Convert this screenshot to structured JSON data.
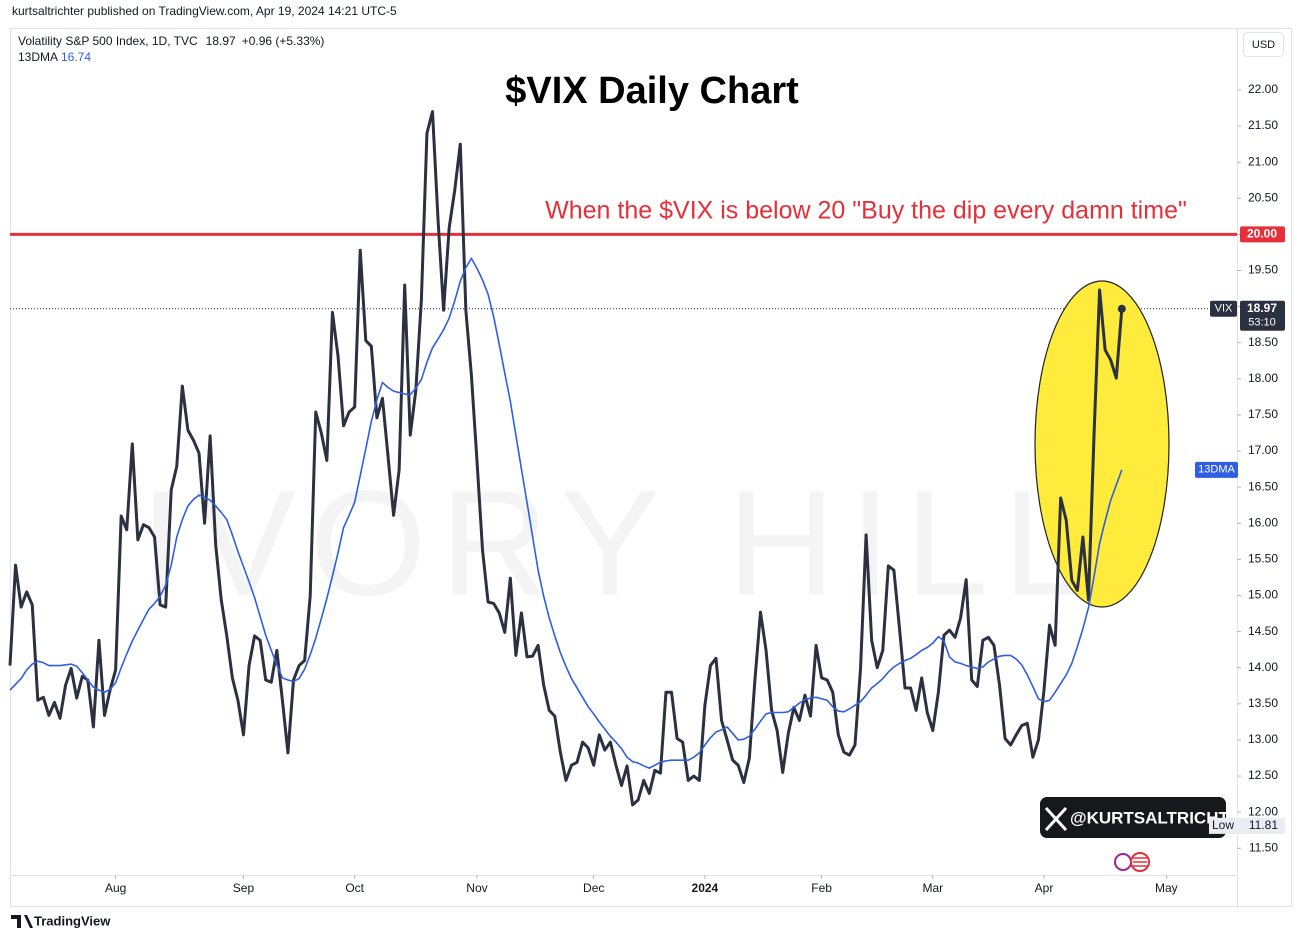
{
  "chart_data": {
    "type": "line",
    "header": "kurtsaltrichter published on TradingView.com, Apr 19, 2024 14:21 UTC-5",
    "title": "$VIX Daily Chart",
    "change": "+0.96 (+5.33%)",
    "annotation": "When the $VIX is below 20 \"Buy the dip every damn time\"",
    "watermark": "IVORY HILL",
    "handle": "@KURTSALTRICHTER",
    "currency": "USD",
    "price_tag": "VIX",
    "countdown": "53:10",
    "footer": "TradingView",
    "low": {
      "label": "Low",
      "value": 11.81
    },
    "hline": {
      "value": 20,
      "label": "20.00",
      "color": "#e5303a"
    },
    "grid": false,
    "xlim": [
      0,
      220
    ],
    "xticks": [
      {
        "value": 19,
        "label": "Aug"
      },
      {
        "value": 42,
        "label": "Sep"
      },
      {
        "value": 62,
        "label": "Oct"
      },
      {
        "value": 84,
        "label": "Nov"
      },
      {
        "value": 105,
        "label": "Dec"
      },
      {
        "value": 125,
        "label": "2024"
      },
      {
        "value": 146,
        "label": "Feb"
      },
      {
        "value": 166,
        "label": "Mar"
      },
      {
        "value": 186,
        "label": "Apr"
      },
      {
        "value": 208,
        "label": "May"
      }
    ],
    "ylim": [
      11.13,
      22.83
    ],
    "yticks": [
      {
        "value": 11.5,
        "label": "11.50"
      },
      {
        "value": 12,
        "label": "12.00"
      },
      {
        "value": 12.5,
        "label": "12.50"
      },
      {
        "value": 13,
        "label": "13.00"
      },
      {
        "value": 13.5,
        "label": "13.50"
      },
      {
        "value": 14,
        "label": "14.00"
      },
      {
        "value": 14.5,
        "label": "14.50"
      },
      {
        "value": 15,
        "label": "15.00"
      },
      {
        "value": 15.5,
        "label": "15.50"
      },
      {
        "value": 16,
        "label": "16.00"
      },
      {
        "value": 16.5,
        "label": "16.50"
      },
      {
        "value": 17,
        "label": "17.00"
      },
      {
        "value": 17.5,
        "label": "17.50"
      },
      {
        "value": 18,
        "label": "18.00"
      },
      {
        "value": 18.5,
        "label": "18.50"
      },
      {
        "value": 19,
        "label": "19.00"
      },
      {
        "value": 19.5,
        "label": "19.50"
      },
      {
        "value": 20,
        "label": "20.00"
      },
      {
        "value": 20.5,
        "label": "20.50"
      },
      {
        "value": 21,
        "label": "21.00"
      },
      {
        "value": 21.5,
        "label": "21.50"
      },
      {
        "value": 22,
        "label": "22.00"
      }
    ],
    "series": [
      {
        "name": "Volatility S&P 500 Index, 1D, TVC",
        "color": "#2b3140",
        "values": [
          14.03,
          15.42,
          14.84,
          15.05,
          14.87,
          13.55,
          13.59,
          13.34,
          13.52,
          13.3,
          13.76,
          13.99,
          13.58,
          13.88,
          13.83,
          13.18,
          14.38,
          13.34,
          13.69,
          13.97,
          16.1,
          15.91,
          17.1,
          15.77,
          15.98,
          15.94,
          15.81,
          14.87,
          14.84,
          16.46,
          16.79,
          17.9,
          17.29,
          17.15,
          16.97,
          16.0,
          17.21,
          15.7,
          14.94,
          14.44,
          13.86,
          13.55,
          13.07,
          14.03,
          14.44,
          14.38,
          13.83,
          13.8,
          14.24,
          13.55,
          12.82,
          13.83,
          14.03,
          14.1,
          14.99,
          17.54,
          17.25,
          16.87,
          18.92,
          18.32,
          17.35,
          17.54,
          17.61,
          19.78,
          18.53,
          18.45,
          17.46,
          17.73,
          16.93,
          16.11,
          16.74,
          19.3,
          17.22,
          17.84,
          19.09,
          21.4,
          21.7,
          20.2,
          18.95,
          20.09,
          20.61,
          21.25,
          18.95,
          18.05,
          16.87,
          15.63,
          14.91,
          14.89,
          14.76,
          14.49,
          15.24,
          14.17,
          14.76,
          14.15,
          14.16,
          14.31,
          13.76,
          13.41,
          13.33,
          12.83,
          12.44,
          12.65,
          12.69,
          12.97,
          12.89,
          12.65,
          13.07,
          12.86,
          12.97,
          12.65,
          12.37,
          12.64,
          12.1,
          12.17,
          12.44,
          12.26,
          12.58,
          12.54,
          13.66,
          13.66,
          13.02,
          12.97,
          12.44,
          12.5,
          12.44,
          13.48,
          14.03,
          14.13,
          13.27,
          13.0,
          12.72,
          12.65,
          12.41,
          12.75,
          13.83,
          14.77,
          14.24,
          13.41,
          13.13,
          12.55,
          13.09,
          13.45,
          13.27,
          13.62,
          13.33,
          14.31,
          13.86,
          13.83,
          13.66,
          13.07,
          12.83,
          12.79,
          12.93,
          13.99,
          15.84,
          14.38,
          14.0,
          14.24,
          15.41,
          15.35,
          14.55,
          13.72,
          13.72,
          13.41,
          13.86,
          13.38,
          13.13,
          13.66,
          14.45,
          14.52,
          14.42,
          14.69,
          15.22,
          13.83,
          13.74,
          14.38,
          14.42,
          14.31,
          13.76,
          13.02,
          12.93,
          13.07,
          13.2,
          13.23,
          12.76,
          13.0,
          13.69,
          14.59,
          14.31,
          16.35,
          16.04,
          15.21,
          15.07,
          15.81,
          14.94,
          17.22,
          19.23,
          18.4,
          18.26,
          18.01,
          18.97
        ]
      },
      {
        "name": "13DMA",
        "color": "#2f5fe0",
        "values": [
          13.69,
          13.77,
          13.85,
          13.97,
          14.05,
          14.09,
          14.07,
          14.03,
          14.03,
          14.03,
          14.04,
          14.05,
          14.02,
          13.93,
          13.83,
          13.73,
          13.69,
          13.66,
          13.7,
          13.79,
          14.0,
          14.19,
          14.37,
          14.52,
          14.67,
          14.81,
          14.89,
          14.99,
          15.14,
          15.42,
          15.81,
          16.05,
          16.24,
          16.33,
          16.39,
          16.36,
          16.32,
          16.24,
          16.15,
          16.05,
          15.84,
          15.61,
          15.4,
          15.19,
          14.97,
          14.71,
          14.45,
          14.24,
          14.04,
          13.86,
          13.83,
          13.81,
          13.85,
          13.98,
          14.18,
          14.41,
          14.68,
          14.96,
          15.27,
          15.59,
          15.94,
          16.11,
          16.29,
          16.66,
          17.03,
          17.41,
          17.71,
          17.95,
          17.88,
          17.83,
          17.81,
          17.79,
          17.78,
          17.87,
          17.99,
          18.23,
          18.43,
          18.55,
          18.68,
          18.84,
          19.08,
          19.35,
          19.54,
          19.67,
          19.53,
          19.37,
          19.17,
          18.86,
          18.48,
          18.08,
          17.69,
          17.22,
          16.75,
          16.29,
          15.82,
          15.35,
          14.99,
          14.69,
          14.44,
          14.21,
          14.02,
          13.85,
          13.72,
          13.59,
          13.46,
          13.36,
          13.25,
          13.15,
          13.05,
          12.97,
          12.88,
          12.76,
          12.7,
          12.68,
          12.64,
          12.61,
          12.65,
          12.69,
          12.71,
          12.72,
          12.72,
          12.72,
          12.72,
          12.76,
          12.82,
          12.93,
          13.03,
          13.11,
          13.14,
          13.18,
          13.09,
          13.0,
          13.01,
          13.05,
          13.15,
          13.26,
          13.36,
          13.38,
          13.38,
          13.38,
          13.39,
          13.45,
          13.51,
          13.56,
          13.58,
          13.59,
          13.57,
          13.55,
          13.46,
          13.4,
          13.39,
          13.43,
          13.48,
          13.53,
          13.62,
          13.72,
          13.78,
          13.85,
          13.94,
          14.01,
          14.06,
          14.1,
          14.13,
          14.18,
          14.24,
          14.28,
          14.34,
          14.43,
          14.37,
          14.15,
          14.08,
          14.06,
          14.03,
          14.01,
          13.99,
          14.01,
          14.08,
          14.12,
          14.16,
          14.17,
          14.17,
          14.12,
          14.04,
          13.9,
          13.74,
          13.57,
          13.53,
          13.55,
          13.66,
          13.78,
          13.9,
          14.06,
          14.29,
          14.54,
          14.83,
          15.26,
          15.72,
          16.03,
          16.32,
          16.53,
          16.74
        ]
      }
    ]
  }
}
